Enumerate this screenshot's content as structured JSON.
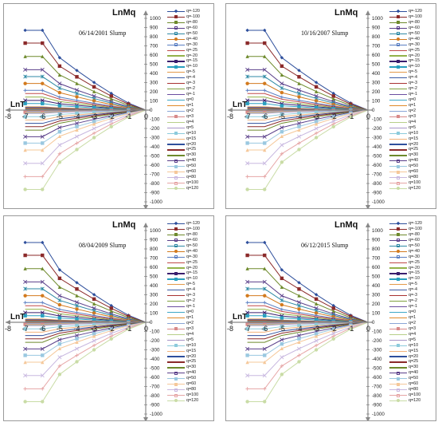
{
  "panels": [
    {
      "title": "06/14/2001 Slump"
    },
    {
      "title": "10/16/2007 Slump"
    },
    {
      "title": "08/04/2009 Slump"
    },
    {
      "title": "06/12/2015 Slump"
    }
  ],
  "axes": {
    "ylabel": "LnMq",
    "xlabel": "LnT"
  },
  "chart_data": {
    "type": "line",
    "x": [
      -7,
      -6,
      -5,
      -4,
      -3,
      -2,
      -1,
      0
    ],
    "xlim": [
      -8,
      0
    ],
    "ylim": [
      -1000,
      1000
    ],
    "x_ticks": [
      -8,
      -7,
      -6,
      -5,
      -4,
      -3,
      -2,
      -1,
      0
    ],
    "y_ticks": [
      1000,
      900,
      800,
      700,
      600,
      500,
      400,
      300,
      200,
      100,
      0,
      -100,
      -200,
      -300,
      -400,
      -500,
      -600,
      -700,
      -800,
      -900,
      -1000
    ],
    "series": [
      {
        "name": "q=-120",
        "color": "#2e4f9c",
        "marker": "diamond",
        "start": 870
      },
      {
        "name": "q=-100",
        "color": "#8b2a2a",
        "marker": "square",
        "start": 730
      },
      {
        "name": "q=-80",
        "color": "#6e8a2c",
        "marker": "triangle",
        "start": 585
      },
      {
        "name": "q=-60",
        "color": "#5a3f8a",
        "marker": "x",
        "start": 440
      },
      {
        "name": "q=-50",
        "color": "#2f8aa5",
        "marker": "star",
        "start": 365
      },
      {
        "name": "q=-40",
        "color": "#d27a1e",
        "marker": "circle",
        "start": 290
      },
      {
        "name": "q=-30",
        "color": "#5b7fc2",
        "marker": "plus",
        "start": 215
      },
      {
        "name": "q=-25",
        "color": "#c04a4a",
        "marker": "none",
        "start": 180
      },
      {
        "name": "q=-20",
        "color": "#94b24a",
        "marker": "none",
        "start": 142
      },
      {
        "name": "q=-15",
        "color": "#3a1f6e",
        "marker": "x",
        "start": 105
      },
      {
        "name": "q=-10",
        "color": "#2aa0c0",
        "marker": "square",
        "start": 72
      },
      {
        "name": "q=-5",
        "color": "#e39a4a",
        "marker": "none",
        "start": 36
      },
      {
        "name": "q=-4",
        "color": "#3a5ba5",
        "marker": "none",
        "start": 28
      },
      {
        "name": "q=-3",
        "color": "#a83232",
        "marker": "none",
        "start": 21
      },
      {
        "name": "q=-2",
        "color": "#7fa040",
        "marker": "none",
        "start": 14
      },
      {
        "name": "q=-1",
        "color": "#6a4ea0",
        "marker": "none",
        "start": 7
      },
      {
        "name": "q=0",
        "color": "#3fa8c8",
        "marker": "none",
        "start": 0
      },
      {
        "name": "q=1",
        "color": "#e08a2a",
        "marker": "none",
        "start": -7
      },
      {
        "name": "q=2",
        "color": "#8aa6d6",
        "marker": "none",
        "start": -14
      },
      {
        "name": "q=3",
        "color": "#d88a8a",
        "marker": "square",
        "start": -21
      },
      {
        "name": "q=4",
        "color": "#b8d08a",
        "marker": "none",
        "start": -28
      },
      {
        "name": "q=5",
        "color": "#a896c8",
        "marker": "none",
        "start": -36
      },
      {
        "name": "q=10",
        "color": "#8ccbdc",
        "marker": "square",
        "start": -72
      },
      {
        "name": "q=15",
        "color": "#f2b27a",
        "marker": "none",
        "start": -108
      },
      {
        "name": "q=20",
        "color": "#2e4f9c",
        "marker": "none",
        "start": -145
      },
      {
        "name": "q=25",
        "color": "#8b2a2a",
        "marker": "none",
        "start": -180
      },
      {
        "name": "q=30",
        "color": "#6e8a2c",
        "marker": "none",
        "start": -218
      },
      {
        "name": "q=40",
        "color": "#5a3f8a",
        "marker": "x",
        "start": -290
      },
      {
        "name": "q=50",
        "color": "#9ac8e0",
        "marker": "square",
        "start": -360
      },
      {
        "name": "q=60",
        "color": "#f5c89a",
        "marker": "triangle",
        "start": -435
      },
      {
        "name": "q=80",
        "color": "#c8b8e0",
        "marker": "x",
        "start": -580
      },
      {
        "name": "q=100",
        "color": "#e6a6a6",
        "marker": "plus",
        "start": -725
      },
      {
        "name": "q=120",
        "color": "#c9dca6",
        "marker": "circle",
        "start": -865
      }
    ]
  }
}
